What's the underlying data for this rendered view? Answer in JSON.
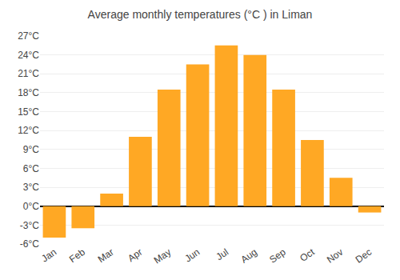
{
  "chart_data": {
    "type": "bar",
    "title": "Average monthly temperatures (°C ) in Liman",
    "categories": [
      "Jan",
      "Feb",
      "Mar",
      "Apr",
      "May",
      "Jun",
      "Jul",
      "Aug",
      "Sep",
      "Oct",
      "Nov",
      "Dec"
    ],
    "values": [
      -5.0,
      -3.5,
      2.0,
      11.0,
      18.5,
      22.5,
      25.5,
      24.0,
      18.5,
      10.5,
      4.5,
      -1.0
    ],
    "color": "#FFA824",
    "ylim": [
      -6,
      27
    ],
    "yticks": [
      {
        "value": -6,
        "label": "-6°C"
      },
      {
        "value": -3,
        "label": "-3°C"
      },
      {
        "value": 0,
        "label": "0°C"
      },
      {
        "value": 3,
        "label": "3°C"
      },
      {
        "value": 6,
        "label": "6°C"
      },
      {
        "value": 9,
        "label": "9°C"
      },
      {
        "value": 12,
        "label": "12°C"
      },
      {
        "value": 15,
        "label": "15°C"
      },
      {
        "value": 18,
        "label": "18°C"
      },
      {
        "value": 21,
        "label": "21°C"
      },
      {
        "value": 24,
        "label": "24°C"
      },
      {
        "value": 27,
        "label": "27°C"
      }
    ],
    "grid": true
  }
}
